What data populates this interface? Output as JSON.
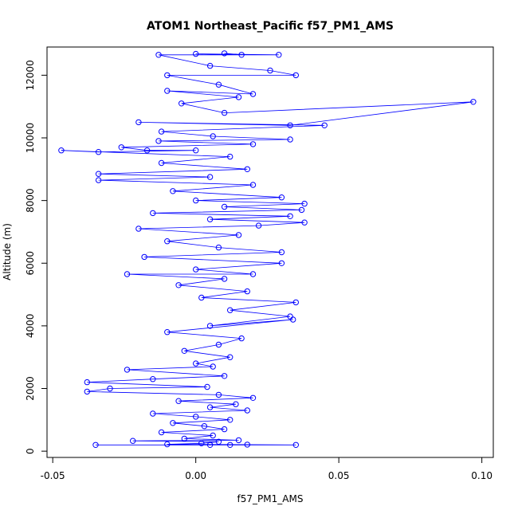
{
  "chart_data": {
    "type": "scatter",
    "title": "ATOM1 Northeast_Pacific f57_PM1_AMS",
    "xlabel": "f57_PM1_AMS",
    "ylabel": "Altitude (m)",
    "xlim": [
      -0.052,
      0.104
    ],
    "ylim": [
      -200,
      12900
    ],
    "x_ticks": [
      -0.05,
      0.0,
      0.05,
      0.1
    ],
    "x_tick_labels": [
      "-0.05",
      "0.00",
      "0.05",
      "0.10"
    ],
    "y_ticks": [
      0,
      2000,
      4000,
      6000,
      8000,
      10000,
      12000
    ],
    "y_tick_labels": [
      "0",
      "2000",
      "4000",
      "6000",
      "8000",
      "10000",
      "12000"
    ],
    "grid": false,
    "legend": "none",
    "series": [
      {
        "color": "#0000ff",
        "marker": "open-circle",
        "connect": true,
        "points": [
          [
            0.005,
            200
          ],
          [
            0.012,
            200
          ],
          [
            -0.035,
            200
          ],
          [
            0.035,
            200
          ],
          [
            0.018,
            210
          ],
          [
            -0.01,
            220
          ],
          [
            0.002,
            250
          ],
          [
            0.008,
            300
          ],
          [
            -0.022,
            330
          ],
          [
            0.015,
            350
          ],
          [
            -0.004,
            400
          ],
          [
            0.006,
            500
          ],
          [
            -0.012,
            600
          ],
          [
            0.01,
            700
          ],
          [
            0.003,
            800
          ],
          [
            -0.008,
            900
          ],
          [
            0.012,
            1000
          ],
          [
            0.0,
            1100
          ],
          [
            -0.015,
            1200
          ],
          [
            0.018,
            1300
          ],
          [
            0.005,
            1400
          ],
          [
            0.014,
            1500
          ],
          [
            -0.006,
            1600
          ],
          [
            0.02,
            1700
          ],
          [
            0.008,
            1800
          ],
          [
            -0.038,
            1900
          ],
          [
            -0.03,
            2000
          ],
          [
            0.004,
            2050
          ],
          [
            -0.038,
            2200
          ],
          [
            -0.015,
            2300
          ],
          [
            0.01,
            2400
          ],
          [
            -0.024,
            2600
          ],
          [
            0.006,
            2700
          ],
          [
            0.0,
            2800
          ],
          [
            0.012,
            3000
          ],
          [
            -0.004,
            3200
          ],
          [
            0.008,
            3400
          ],
          [
            0.016,
            3600
          ],
          [
            -0.01,
            3800
          ],
          [
            0.034,
            4200
          ],
          [
            0.005,
            4000
          ],
          [
            0.033,
            4300
          ],
          [
            0.012,
            4500
          ],
          [
            0.035,
            4750
          ],
          [
            0.002,
            4900
          ],
          [
            0.018,
            5100
          ],
          [
            -0.006,
            5300
          ],
          [
            0.01,
            5500
          ],
          [
            -0.024,
            5650
          ],
          [
            0.02,
            5650
          ],
          [
            0.0,
            5800
          ],
          [
            0.03,
            6000
          ],
          [
            -0.018,
            6200
          ],
          [
            0.03,
            6350
          ],
          [
            0.008,
            6500
          ],
          [
            -0.01,
            6700
          ],
          [
            0.015,
            6900
          ],
          [
            -0.02,
            7100
          ],
          [
            0.022,
            7200
          ],
          [
            0.038,
            7300
          ],
          [
            0.005,
            7400
          ],
          [
            0.033,
            7500
          ],
          [
            -0.015,
            7600
          ],
          [
            0.037,
            7700
          ],
          [
            0.01,
            7800
          ],
          [
            0.038,
            7900
          ],
          [
            0.0,
            8000
          ],
          [
            0.03,
            8100
          ],
          [
            -0.008,
            8300
          ],
          [
            0.02,
            8500
          ],
          [
            -0.034,
            8650
          ],
          [
            0.005,
            8750
          ],
          [
            -0.034,
            8850
          ],
          [
            0.018,
            9000
          ],
          [
            -0.012,
            9200
          ],
          [
            0.012,
            9400
          ],
          [
            -0.047,
            9600
          ],
          [
            -0.034,
            9550
          ],
          [
            0.0,
            9600
          ],
          [
            -0.017,
            9600
          ],
          [
            -0.026,
            9700
          ],
          [
            0.02,
            9800
          ],
          [
            -0.013,
            9900
          ],
          [
            0.033,
            9950
          ],
          [
            0.006,
            10050
          ],
          [
            -0.012,
            10200
          ],
          [
            0.045,
            10400
          ],
          [
            -0.02,
            10500
          ],
          [
            0.033,
            10400
          ],
          [
            0.097,
            11150
          ],
          [
            0.01,
            10800
          ],
          [
            -0.005,
            11100
          ],
          [
            0.015,
            11300
          ],
          [
            -0.01,
            11500
          ],
          [
            0.02,
            11400
          ],
          [
            0.008,
            11700
          ],
          [
            -0.01,
            12000
          ],
          [
            0.035,
            12000
          ],
          [
            0.026,
            12150
          ],
          [
            0.005,
            12300
          ],
          [
            -0.013,
            12650
          ],
          [
            0.029,
            12650
          ],
          [
            0.0,
            12680
          ],
          [
            0.016,
            12650
          ],
          [
            0.01,
            12700
          ]
        ]
      }
    ]
  }
}
